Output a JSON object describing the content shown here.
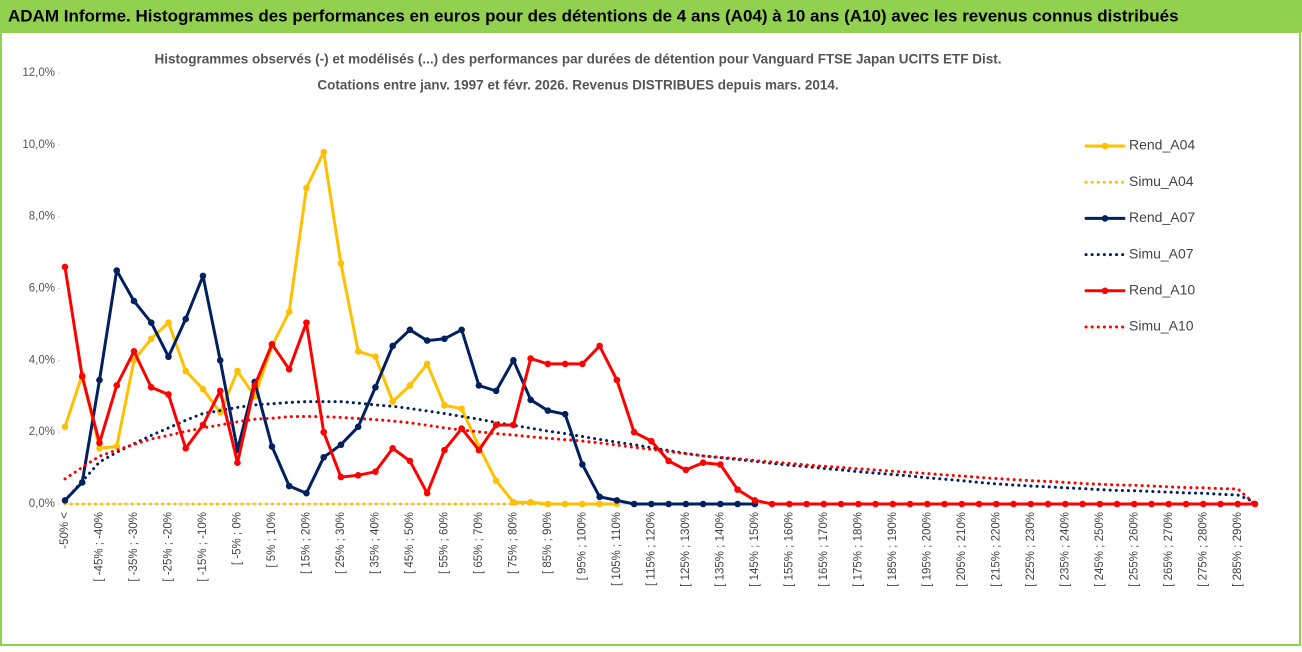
{
  "chart_data": {
    "type": "line",
    "header": "ADAM Informe. Histogrammes des performances en euros pour des détentions de 4 ans (A04) à 10 ans (A10) avec les revenus connus distribués",
    "title": "Histogrammes observés (-) et modélisés (...) des performances par durées de détention pour Vanguard FTSE Japan UCITS ETF Dist.",
    "subtitle": "Cotations entre janv. 1997 et févr. 2026. Revenus DISTRIBUES depuis mars. 2014.",
    "legend": "right",
    "categories": [
      "-50% <",
      null,
      "[ -45% ; -40%",
      null,
      "[ -35% ; -30%",
      null,
      "[ -25% ; -20%",
      null,
      "[ -15% ; -10%",
      null,
      "[ -5% ; 0%",
      null,
      "[ 5% ; 10%",
      null,
      "[ 15% ; 20%",
      null,
      "[ 25% ; 30%",
      null,
      "[ 35% ; 40%",
      null,
      "[ 45% ; 50%",
      null,
      "[ 55% ; 60%",
      null,
      "[ 65% ; 70%",
      null,
      "[ 75% ; 80%",
      null,
      "[ 85% ; 90%",
      null,
      "[ 95% ; 100%",
      null,
      "[ 105% ; 110%",
      null,
      "[ 115% ; 120%",
      null,
      "[ 125% ; 130%",
      null,
      "[ 135% ; 140%",
      null,
      "[ 145% ; 150%",
      null,
      "[ 155% ; 160%",
      null,
      "[ 165% ; 170%",
      null,
      "[ 175% ; 180%",
      null,
      "[ 185% ; 190%",
      null,
      "[ 195% ; 200%",
      null,
      "[ 205% ; 210%",
      null,
      "[ 215% ; 220%",
      null,
      "[ 225% ; 230%",
      null,
      "[ 235% ; 240%",
      null,
      "[ 245% ; 250%",
      null,
      "[ 255% ; 260%",
      null,
      "[ 265% ; 270%",
      null,
      "[ 275% ; 280%",
      null,
      "[ 285% ; 290%",
      null
    ],
    "ylim": [
      0,
      12
    ],
    "yticks": [
      {
        "value": 0,
        "label": "0,0%"
      },
      {
        "value": 2,
        "label": "2,0%"
      },
      {
        "value": 4,
        "label": "4,0%"
      },
      {
        "value": 6,
        "label": "6,0%"
      },
      {
        "value": 8,
        "label": "8,0%"
      },
      {
        "value": 10,
        "label": "10,0%"
      },
      {
        "value": 12,
        "label": "12,0%"
      }
    ],
    "series": [
      {
        "name": "Rend_A04",
        "color": "#ffc000",
        "line_style": "solid",
        "markers": true,
        "values": [
          2.15,
          3.6,
          1.55,
          1.6,
          4.0,
          4.6,
          5.05,
          3.7,
          3.2,
          2.55,
          3.7,
          3.0,
          4.4,
          5.35,
          8.8,
          9.8,
          6.7,
          4.25,
          4.1,
          2.85,
          3.3,
          3.9,
          2.75,
          2.65,
          1.6,
          0.65,
          0.05,
          0.05,
          0,
          0,
          0,
          0,
          0,
          null,
          null,
          null,
          null,
          null,
          null,
          null,
          null,
          null,
          null,
          null,
          null,
          null,
          null,
          null,
          null,
          null,
          null,
          null,
          null,
          null,
          null,
          null,
          null,
          null,
          null,
          null,
          null,
          null,
          null,
          null,
          null,
          null,
          null,
          null,
          null,
          null
        ]
      },
      {
        "name": "Simu_A04",
        "color": "#ffc000",
        "line_style": "dotted",
        "markers": false,
        "values": [
          0,
          0,
          0,
          0,
          0,
          0,
          0,
          0,
          0,
          0,
          0,
          0,
          0,
          0,
          0,
          0,
          0,
          0,
          0,
          0,
          0,
          0,
          0,
          0,
          0,
          0,
          0,
          0,
          0,
          0,
          0,
          0,
          0,
          null,
          null,
          null,
          null,
          null,
          null,
          null,
          null,
          null,
          null,
          null,
          null,
          null,
          null,
          null,
          null,
          null,
          null,
          null,
          null,
          null,
          null,
          null,
          null,
          null,
          null,
          null,
          null,
          null,
          null,
          null,
          null,
          null,
          null,
          null,
          null,
          null
        ]
      },
      {
        "name": "Rend_A07",
        "color": "#002060",
        "line_style": "solid",
        "markers": true,
        "values": [
          0.1,
          0.6,
          3.45,
          6.5,
          5.65,
          5.05,
          4.1,
          5.15,
          6.35,
          4.0,
          1.5,
          3.4,
          1.6,
          0.5,
          0.3,
          1.3,
          1.65,
          2.15,
          3.25,
          4.4,
          4.85,
          4.55,
          4.6,
          4.85,
          3.3,
          3.15,
          4.0,
          2.9,
          2.6,
          2.5,
          1.1,
          0.2,
          0.1,
          0,
          0,
          0,
          0,
          0,
          0,
          0,
          0,
          null,
          null,
          null,
          null,
          null,
          null,
          null,
          null,
          null,
          null,
          null,
          null,
          null,
          null,
          null,
          null,
          null,
          null,
          null,
          null,
          null,
          null,
          null,
          null,
          null,
          null,
          null,
          null,
          null
        ]
      },
      {
        "name": "Simu_A07",
        "color": "#002060",
        "line_style": "dotted",
        "markers": false,
        "values": [
          0.1,
          0.63,
          1.17,
          1.44,
          1.68,
          1.91,
          2.12,
          2.33,
          2.52,
          2.6,
          2.69,
          2.76,
          2.79,
          2.83,
          2.85,
          2.85,
          2.85,
          2.81,
          2.76,
          2.72,
          2.66,
          2.59,
          2.52,
          2.44,
          2.36,
          2.27,
          2.19,
          2.11,
          2.03,
          1.96,
          1.88,
          1.8,
          1.72,
          1.65,
          1.57,
          1.49,
          1.41,
          1.34,
          1.29,
          1.24,
          1.19,
          1.13,
          1.08,
          1.04,
          0.99,
          0.95,
          0.9,
          0.86,
          0.82,
          0.78,
          0.73,
          0.69,
          0.65,
          0.6,
          0.56,
          0.53,
          0.5,
          0.48,
          0.45,
          0.43,
          0.4,
          0.38,
          0.37,
          0.35,
          0.33,
          0.31,
          0.3,
          0.27,
          0.25,
          0.05
        ]
      },
      {
        "name": "Rend_A10",
        "color": "#ff0000",
        "line_style": "solid",
        "markers": true,
        "values": [
          6.6,
          3.55,
          1.7,
          3.3,
          4.25,
          3.25,
          3.05,
          1.55,
          2.2,
          3.15,
          1.15,
          3.3,
          4.45,
          3.75,
          5.05,
          2.0,
          0.75,
          0.8,
          0.9,
          1.55,
          1.2,
          0.3,
          1.5,
          2.1,
          1.5,
          2.2,
          2.2,
          4.05,
          3.9,
          3.9,
          3.9,
          4.4,
          3.45,
          2.0,
          1.75,
          1.2,
          0.95,
          1.15,
          1.1,
          0.4,
          0.1,
          0,
          0,
          0,
          0,
          0,
          0,
          0,
          0,
          0,
          0,
          0,
          0,
          0,
          0,
          0,
          0,
          0,
          0,
          0,
          0,
          0,
          0,
          0,
          0,
          0,
          0,
          0,
          0,
          0
        ]
      },
      {
        "name": "Simu_A10",
        "color": "#ff0000",
        "line_style": "dotted",
        "markers": false,
        "values": [
          0.7,
          1.02,
          1.33,
          1.5,
          1.66,
          1.81,
          1.91,
          2.02,
          2.12,
          2.2,
          2.29,
          2.36,
          2.39,
          2.43,
          2.44,
          2.43,
          2.41,
          2.38,
          2.35,
          2.31,
          2.26,
          2.19,
          2.12,
          2.06,
          2.01,
          1.96,
          1.92,
          1.87,
          1.83,
          1.79,
          1.75,
          1.7,
          1.64,
          1.58,
          1.52,
          1.46,
          1.4,
          1.34,
          1.3,
          1.26,
          1.21,
          1.17,
          1.13,
          1.09,
          1.05,
          1.02,
          0.98,
          0.95,
          0.91,
          0.88,
          0.85,
          0.81,
          0.78,
          0.74,
          0.71,
          0.68,
          0.65,
          0.63,
          0.6,
          0.57,
          0.55,
          0.53,
          0.52,
          0.5,
          0.48,
          0.46,
          0.45,
          0.43,
          0.42,
          0
        ]
      }
    ]
  }
}
